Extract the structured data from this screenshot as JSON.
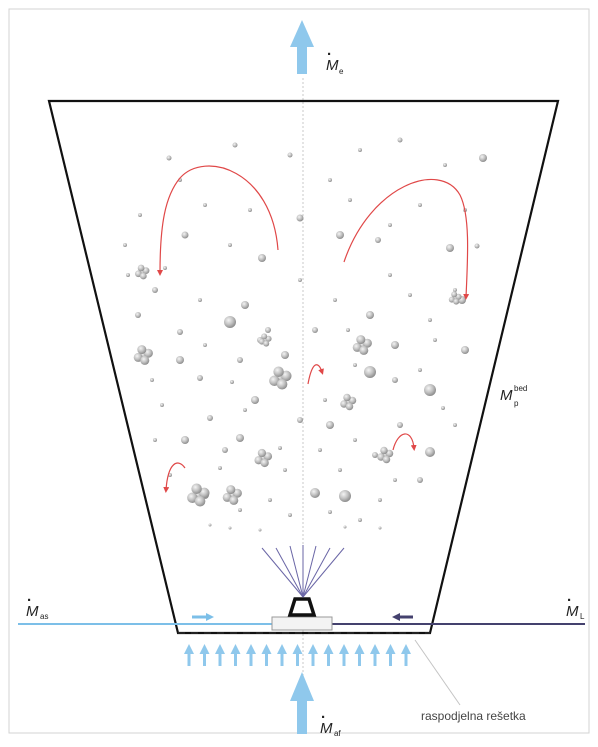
{
  "labels": {
    "top_flow_sub": "e",
    "bed_mass_super": "bed",
    "bed_mass_sub": "p",
    "left_flow_sub": "as",
    "right_flow_sub": "L",
    "bottom_flow_sub": "af",
    "grate_label": "raspodjelna rešetka"
  },
  "symbols": {
    "mass_flow": "M",
    "dot": "·"
  },
  "colors": {
    "vessel_outline": "#111111",
    "frame": "#cfcfcf",
    "air_arrow": "#8fc8ec",
    "left_line": "#7cbfe8",
    "right_line": "#44416e",
    "recirculation": "#e04848",
    "particle": "#b9b9b9",
    "spray_line": "#6a66a6"
  }
}
